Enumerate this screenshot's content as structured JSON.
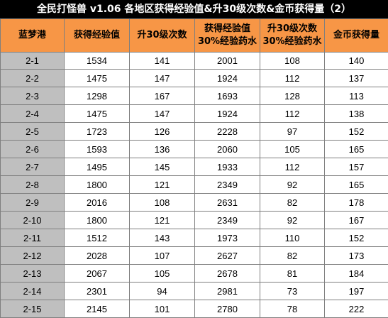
{
  "title": "全民打怪兽  v1.06    各地区获得经验值&升30级次数&金币获得量（2）",
  "table": {
    "headers": [
      {
        "lines": [
          "蓝梦港"
        ]
      },
      {
        "lines": [
          "获得经验值"
        ]
      },
      {
        "lines": [
          "升30级次数"
        ]
      },
      {
        "lines": [
          "获得经验值",
          "30%经验药水"
        ]
      },
      {
        "lines": [
          "升30级次数",
          "30%经验药水"
        ]
      },
      {
        "lines": [
          "金币获得量"
        ]
      }
    ],
    "rows": [
      [
        "2-1",
        "1534",
        "141",
        "2001",
        "108",
        "140"
      ],
      [
        "2-2",
        "1475",
        "147",
        "1924",
        "112",
        "137"
      ],
      [
        "2-3",
        "1298",
        "167",
        "1693",
        "128",
        "113"
      ],
      [
        "2-4",
        "1475",
        "147",
        "1924",
        "112",
        "138"
      ],
      [
        "2-5",
        "1723",
        "126",
        "2228",
        "97",
        "152"
      ],
      [
        "2-6",
        "1593",
        "136",
        "2060",
        "105",
        "165"
      ],
      [
        "2-7",
        "1495",
        "145",
        "1933",
        "112",
        "157"
      ],
      [
        "2-8",
        "1800",
        "121",
        "2349",
        "92",
        "165"
      ],
      [
        "2-9",
        "2016",
        "108",
        "2631",
        "82",
        "178"
      ],
      [
        "2-10",
        "1800",
        "121",
        "2349",
        "92",
        "167"
      ],
      [
        "2-11",
        "1512",
        "143",
        "1973",
        "110",
        "152"
      ],
      [
        "2-12",
        "2028",
        "107",
        "2627",
        "82",
        "173"
      ],
      [
        "2-13",
        "2067",
        "105",
        "2678",
        "81",
        "184"
      ],
      [
        "2-14",
        "2301",
        "94",
        "2981",
        "73",
        "197"
      ],
      [
        "2-15",
        "2145",
        "101",
        "2780",
        "78",
        "222"
      ]
    ]
  }
}
